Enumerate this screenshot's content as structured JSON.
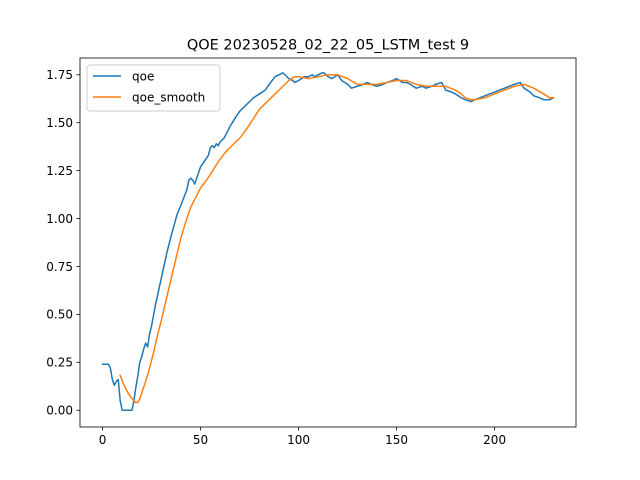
{
  "chart_data": {
    "type": "line",
    "title": "QOE 20230528_02_22_05_LSTM_test 9",
    "xlabel": "",
    "ylabel": "",
    "xlim": [
      -11.5,
      241.5
    ],
    "ylim": [
      -0.0875,
      1.8375
    ],
    "xticks": [
      0,
      50,
      100,
      150,
      200
    ],
    "xtick_labels": [
      "0",
      "50",
      "100",
      "150",
      "200"
    ],
    "yticks": [
      0.0,
      0.25,
      0.5,
      0.75,
      1.0,
      1.25,
      1.5,
      1.75
    ],
    "ytick_labels": [
      "0.00",
      "0.25",
      "0.50",
      "0.75",
      "1.00",
      "1.25",
      "1.50",
      "1.75"
    ],
    "grid": false,
    "legend_position": "upper-left",
    "series": [
      {
        "name": "qoe",
        "color": "#1f77b4",
        "x": [
          0,
          3,
          4,
          5,
          6,
          7,
          8,
          9,
          10,
          11,
          12,
          13,
          14,
          15,
          16,
          17,
          18,
          19,
          20,
          21,
          22,
          23,
          24,
          25,
          27,
          30,
          33,
          35,
          38,
          40,
          43,
          44,
          45,
          46,
          47,
          49,
          50,
          52,
          54,
          55,
          56,
          57,
          58,
          59,
          60,
          62,
          65,
          68,
          70,
          73,
          75,
          77,
          80,
          83,
          85,
          88,
          90,
          92,
          93,
          95,
          97,
          98,
          100,
          103,
          105,
          107,
          108,
          110,
          112,
          113,
          115,
          117,
          120,
          122,
          125,
          127,
          130,
          133,
          135,
          137,
          140,
          143,
          145,
          148,
          150,
          153,
          155,
          157,
          160,
          163,
          165,
          168,
          170,
          173,
          175,
          178,
          180,
          183,
          185,
          188,
          190,
          195,
          200,
          205,
          210,
          213,
          215,
          218,
          220,
          223,
          225,
          228,
          230
        ],
        "y": [
          0.24,
          0.24,
          0.22,
          0.16,
          0.13,
          0.15,
          0.16,
          0.05,
          0.0,
          0.0,
          0.0,
          0.0,
          0.0,
          0.0,
          0.05,
          0.12,
          0.18,
          0.25,
          0.28,
          0.32,
          0.35,
          0.33,
          0.4,
          0.44,
          0.55,
          0.69,
          0.83,
          0.91,
          1.02,
          1.07,
          1.15,
          1.2,
          1.21,
          1.2,
          1.18,
          1.24,
          1.27,
          1.3,
          1.33,
          1.37,
          1.38,
          1.37,
          1.39,
          1.38,
          1.4,
          1.42,
          1.48,
          1.53,
          1.56,
          1.59,
          1.61,
          1.63,
          1.65,
          1.67,
          1.7,
          1.74,
          1.75,
          1.76,
          1.75,
          1.73,
          1.72,
          1.71,
          1.72,
          1.74,
          1.74,
          1.75,
          1.74,
          1.75,
          1.76,
          1.76,
          1.74,
          1.73,
          1.75,
          1.72,
          1.7,
          1.68,
          1.69,
          1.7,
          1.71,
          1.7,
          1.69,
          1.7,
          1.71,
          1.72,
          1.73,
          1.71,
          1.71,
          1.7,
          1.68,
          1.69,
          1.68,
          1.69,
          1.7,
          1.71,
          1.67,
          1.66,
          1.65,
          1.63,
          1.62,
          1.61,
          1.62,
          1.64,
          1.66,
          1.68,
          1.7,
          1.71,
          1.68,
          1.66,
          1.64,
          1.63,
          1.62,
          1.62,
          1.63
        ]
      },
      {
        "name": "qoe_smooth",
        "color": "#ff7f0e",
        "x": [
          9,
          11,
          13,
          15,
          16,
          17,
          18,
          19,
          20,
          22,
          24,
          26,
          28,
          30,
          33,
          36,
          40,
          43,
          45,
          48,
          50,
          53,
          55,
          58,
          60,
          63,
          65,
          68,
          70,
          73,
          75,
          80,
          85,
          88,
          90,
          93,
          95,
          98,
          100,
          105,
          110,
          115,
          120,
          125,
          130,
          135,
          140,
          145,
          150,
          155,
          160,
          165,
          170,
          175,
          180,
          183,
          185,
          188,
          190,
          195,
          200,
          205,
          210,
          215,
          220,
          225,
          228,
          230
        ],
        "y": [
          0.18,
          0.13,
          0.09,
          0.06,
          0.05,
          0.04,
          0.04,
          0.06,
          0.09,
          0.15,
          0.22,
          0.3,
          0.39,
          0.47,
          0.6,
          0.73,
          0.9,
          1.0,
          1.06,
          1.12,
          1.16,
          1.2,
          1.23,
          1.28,
          1.31,
          1.35,
          1.37,
          1.4,
          1.42,
          1.46,
          1.49,
          1.57,
          1.62,
          1.65,
          1.67,
          1.7,
          1.72,
          1.74,
          1.74,
          1.73,
          1.74,
          1.75,
          1.75,
          1.73,
          1.7,
          1.7,
          1.7,
          1.71,
          1.72,
          1.72,
          1.7,
          1.69,
          1.69,
          1.69,
          1.67,
          1.65,
          1.63,
          1.62,
          1.62,
          1.63,
          1.65,
          1.67,
          1.69,
          1.7,
          1.68,
          1.65,
          1.63,
          1.63
        ]
      }
    ]
  }
}
